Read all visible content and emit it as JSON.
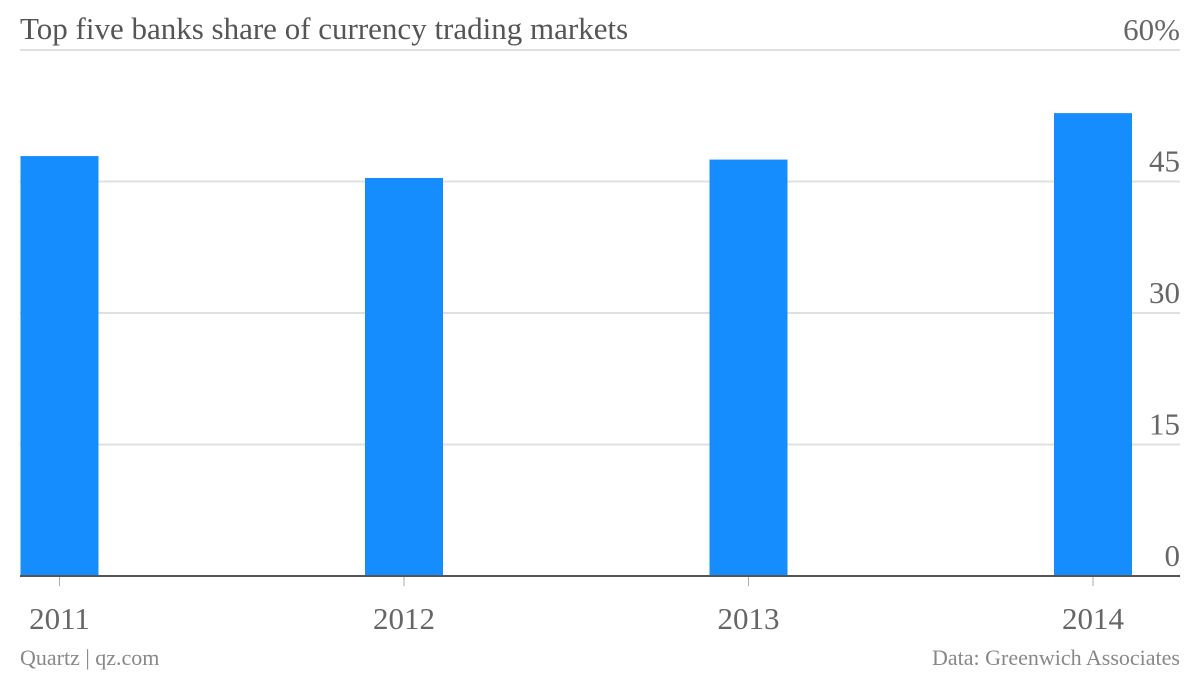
{
  "chart_data": {
    "type": "bar",
    "title": "Top five banks share of currency trading markets",
    "categories": [
      "2011",
      "2012",
      "2013",
      "2014"
    ],
    "values": [
      47.9,
      45.4,
      47.5,
      52.8
    ],
    "color": "#168dff",
    "ylim": [
      0,
      60
    ],
    "yticks": [
      0,
      15,
      30,
      45,
      {
        "value": 60,
        "label": "60%"
      }
    ],
    "grid": true,
    "credit": "Quartz | qz.com",
    "source": "Data: Greenwich Associates"
  }
}
